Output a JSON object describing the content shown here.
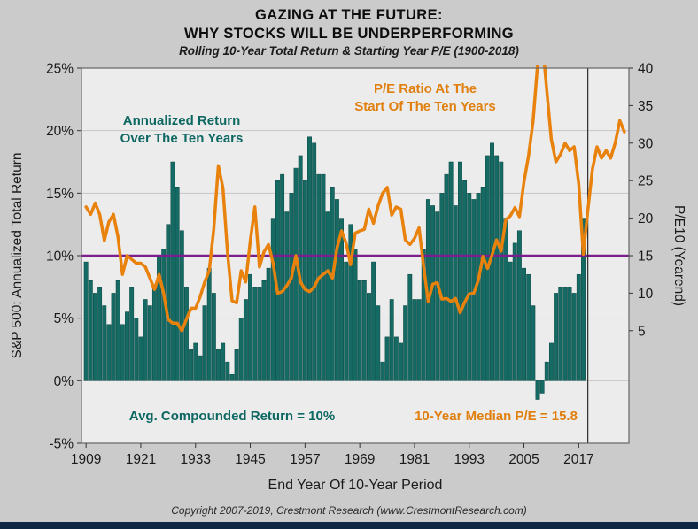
{
  "header": {
    "title_line1": "GAZING AT THE FUTURE:",
    "title_line2": "WHY STOCKS WILL BE UNDERPERFORMING",
    "subtitle": "Rolling 10-Year Total Return & Starting Year P/E (1900-2018)"
  },
  "footer": {
    "copyright": "Copyright 2007-2019, Crestmont Research (www.CrestmontResearch.com)"
  },
  "chart_data": {
    "type": "bar+line",
    "title": "GAZING AT THE FUTURE: WHY STOCKS WILL BE UNDERPERFORMING",
    "x_axis": {
      "label": "End Year Of 10-Year Period",
      "range": [
        1908,
        2028
      ],
      "ticks": [
        1909,
        1921,
        1933,
        1945,
        1957,
        1969,
        1981,
        1993,
        2005,
        2017
      ]
    },
    "y_left": {
      "label": "S&P 500: Annualized Total Return",
      "range": [
        -5,
        25
      ],
      "tick_values": [
        25,
        20,
        15,
        10,
        5,
        0,
        -5
      ],
      "tick_labels": [
        "25%",
        "20%",
        "15%",
        "10%",
        "5%",
        "0%",
        "-5%"
      ]
    },
    "y_right": {
      "label": "P/E10 (Yearend)",
      "top_value": 40,
      "tick_values": [
        40,
        35,
        30,
        25,
        20,
        15,
        10,
        5
      ],
      "value_at_median": 15
    },
    "bars": {
      "name": "Annualized Return Over The Ten Years",
      "start_year": 1909,
      "values": [
        9.5,
        8,
        7,
        7.5,
        6,
        4.5,
        7,
        8,
        4.5,
        5.5,
        7.5,
        5,
        3.5,
        6.5,
        6,
        7.5,
        10,
        10.5,
        12.5,
        17.5,
        15.5,
        12,
        7.5,
        2.5,
        3,
        2,
        6,
        9,
        7,
        2.5,
        3,
        1.5,
        0.5,
        2.5,
        5,
        6.5,
        8.5,
        7.5,
        7.5,
        8,
        9,
        13,
        16,
        16.5,
        13.5,
        15,
        17,
        18,
        16,
        19.5,
        19,
        16.5,
        16.5,
        13.5,
        15.5,
        14.5,
        13,
        9.5,
        12.5,
        10.5,
        8,
        8,
        7,
        9.5,
        6,
        1.5,
        3.5,
        6.5,
        3.5,
        3,
        6,
        8.5,
        6.5,
        6.5,
        10.5,
        14.5,
        14,
        13.5,
        15,
        16.5,
        17.5,
        14,
        17.5,
        16,
        15,
        14.5,
        15,
        15.5,
        18,
        19,
        18,
        17.5,
        13,
        9.5,
        11,
        12,
        9,
        8.5,
        6,
        -1.5,
        -1,
        1.5,
        3,
        7,
        7.5,
        7.5,
        7.5,
        7,
        8.5,
        13
      ]
    },
    "line": {
      "name": "P/E Ratio At The Start Of The Ten Years",
      "start_year": 1909,
      "values": [
        21.5,
        20.5,
        22,
        20.5,
        17,
        19.5,
        20.5,
        17.5,
        12.5,
        15,
        14.5,
        14,
        14,
        13.5,
        12,
        10.5,
        12.5,
        10,
        6.5,
        6,
        6,
        5,
        6.5,
        8,
        8,
        9.5,
        11.5,
        13,
        18.5,
        27,
        24,
        15.5,
        9,
        8.7,
        13,
        11.5,
        17,
        21.5,
        13.5,
        15.5,
        16.5,
        14,
        10,
        10.2,
        11,
        12,
        15,
        11.5,
        10.5,
        10.2,
        10.8,
        12,
        12.5,
        13,
        12,
        16,
        18.3,
        16.7,
        13.8,
        18,
        18.3,
        18.5,
        21.2,
        19.3,
        21.6,
        23.3,
        24.1,
        20.4,
        21.5,
        21.2,
        17.1,
        16.5,
        17.3,
        18.7,
        13.5,
        8.9,
        11.2,
        11.4,
        9.2,
        9.3,
        8.9,
        9.3,
        7.4,
        8.8,
        9.9,
        10,
        11.7,
        14.9,
        13.3,
        15.1,
        17.1,
        15.6,
        19.8,
        20.3,
        21.4,
        20.2,
        24.8,
        28.3,
        32.9,
        40.6,
        43.8,
        37,
        30.5,
        27.5,
        28.5,
        30,
        29,
        29.5,
        24.5,
        15.2,
        21,
        26.5,
        29.5,
        28,
        29,
        28,
        30,
        33,
        31.5
      ]
    },
    "median_line": {
      "left_value": 10,
      "right_value": 15,
      "median_pe_value": 15.8
    },
    "vertical_marker_year": 2019,
    "annotations": {
      "bars_line1": "Annualized Return",
      "bars_line2": "Over The Ten Years",
      "pe_line1": "P/E Ratio At The",
      "pe_line2": "Start Of The Ten Years",
      "avg_return": "Avg. Compounded Return = 10%",
      "median_pe": "10-Year Median P/E = 15.8"
    },
    "colors": {
      "bar": "#156a63",
      "bar_edge": "#0b4844",
      "line": "#e8820c",
      "median": "#7b1e8e",
      "marker": "#2b2b2b",
      "plot_bg": "#ececec",
      "grid": "#c6c6c6",
      "frame": "#666666",
      "annotation_teal": "#0e6862",
      "annotation_orange": "#e07f0e"
    },
    "legend_position": "annotations-inside-plot",
    "grid": "horizontal-only"
  }
}
